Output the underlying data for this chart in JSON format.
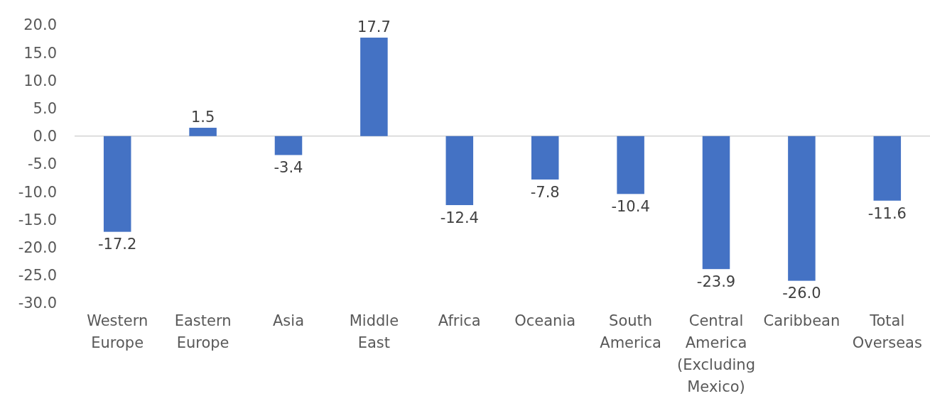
{
  "chart_data": {
    "type": "bar",
    "categories": [
      "Western Europe",
      "Eastern Europe",
      "Asia",
      "Middle East",
      "Africa",
      "Oceania",
      "South America",
      "Central America (Excluding Mexico)",
      "Caribbean",
      "Total Overseas"
    ],
    "values": [
      -17.2,
      1.5,
      -3.4,
      17.7,
      -12.4,
      -7.8,
      -10.4,
      -23.9,
      -26.0,
      -11.6
    ],
    "value_labels": [
      "-17.2",
      "1.5",
      "-3.4",
      "17.7",
      "-12.4",
      "-7.8",
      "-10.4",
      "-23.9",
      "-26.0",
      "-11.6"
    ],
    "color": "#4472c4",
    "ylim": [
      -30,
      20
    ],
    "yticks": [
      {
        "value": -30,
        "label": "-30.0"
      },
      {
        "value": -25,
        "label": "-25.0"
      },
      {
        "value": -20,
        "label": "-20.0"
      },
      {
        "value": -15,
        "label": "-15.0"
      },
      {
        "value": -10,
        "label": "-10.0"
      },
      {
        "value": -5,
        "label": "-5.0"
      },
      {
        "value": 0,
        "label": "0.0"
      },
      {
        "value": 5,
        "label": "5.0"
      },
      {
        "value": 10,
        "label": "10.0"
      },
      {
        "value": 15,
        "label": "15.0"
      },
      {
        "value": 20,
        "label": "20.0"
      }
    ]
  }
}
